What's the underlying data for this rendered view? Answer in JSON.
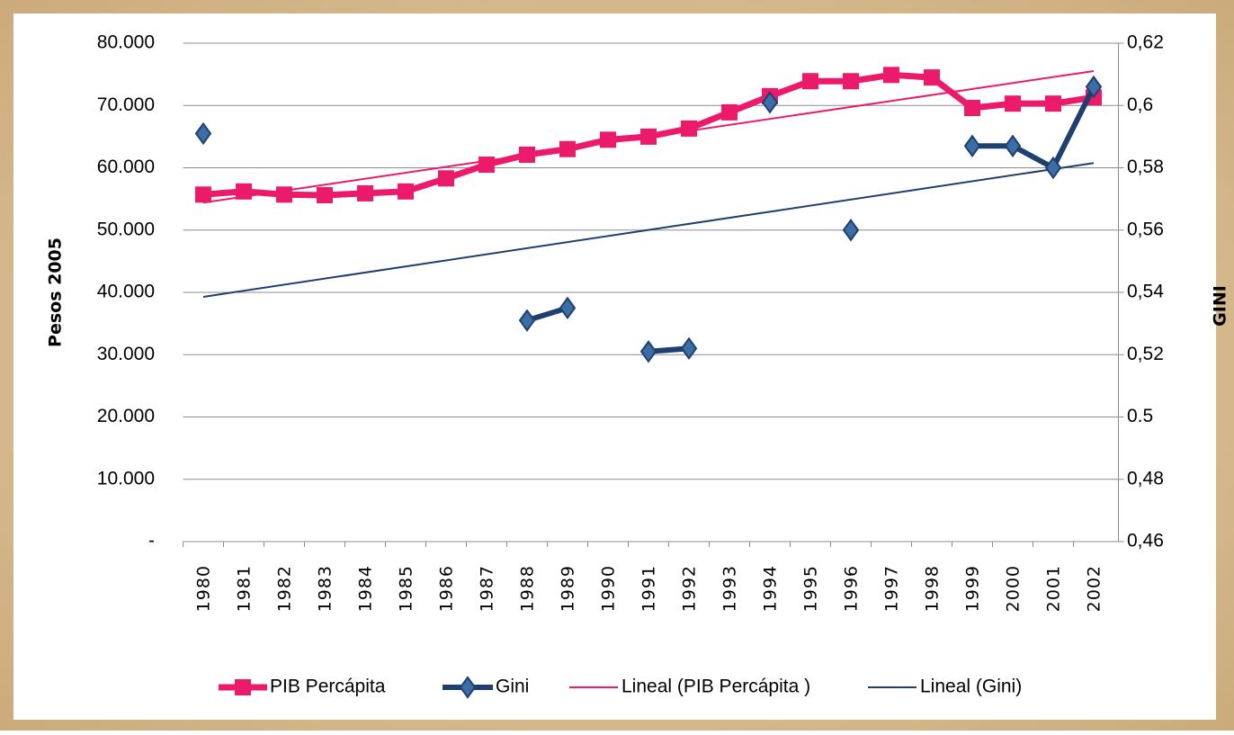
{
  "chart_data": {
    "type": "line",
    "categories": [
      "1980",
      "1981",
      "1982",
      "1983",
      "1984",
      "1985",
      "1986",
      "1987",
      "1988",
      "1989",
      "1990",
      "1991",
      "1992",
      "1993",
      "1994",
      "1995",
      "1996",
      "1997",
      "1998",
      "1999",
      "2000",
      "2001",
      "2002"
    ],
    "series": [
      {
        "name": "PIB Percápita",
        "color": "#ec1a6a",
        "marker": "square",
        "axis": "y",
        "values": [
          55700,
          56200,
          55700,
          55600,
          55900,
          56200,
          58300,
          60500,
          62100,
          63000,
          64500,
          65000,
          66300,
          68900,
          71500,
          73900,
          73900,
          74900,
          74500,
          69600,
          70300,
          70300,
          71300
        ],
        "trendline": {
          "name": "Lineal (PIB Percápita )",
          "color": "#ec1a6a"
        }
      },
      {
        "name": "Gini",
        "color": "#1f3f6e",
        "marker": "diamond",
        "axis": "y2",
        "values": [
          0.591,
          null,
          null,
          null,
          null,
          null,
          null,
          null,
          0.531,
          0.535,
          null,
          0.521,
          0.522,
          null,
          0.601,
          null,
          0.56,
          null,
          null,
          0.587,
          0.587,
          0.58,
          0.606
        ],
        "trendline": {
          "name": "Lineal (Gini)",
          "color": "#1f3f6e"
        }
      }
    ],
    "ylabel": "Pesos 2005",
    "y2label": "GINI",
    "ylim": [
      0,
      80000
    ],
    "yticks": [
      {
        "value": 0,
        "label": "-"
      },
      {
        "value": 10000,
        "label": "10.000"
      },
      {
        "value": 20000,
        "label": "20.000"
      },
      {
        "value": 30000,
        "label": "30.000"
      },
      {
        "value": 40000,
        "label": "40.000"
      },
      {
        "value": 50000,
        "label": "50.000"
      },
      {
        "value": 60000,
        "label": "60.000"
      },
      {
        "value": 70000,
        "label": "70.000"
      },
      {
        "value": 80000,
        "label": "80.000"
      }
    ],
    "y2lim": [
      0.46,
      0.62
    ],
    "y2ticks": [
      {
        "value": 0.46,
        "label": "0,46"
      },
      {
        "value": 0.48,
        "label": "0,48"
      },
      0.5,
      {
        "value": 0.5,
        "label": "0,5"
      },
      {
        "value": 0.52,
        "label": "0,52"
      },
      {
        "value": 0.54,
        "label": "0,54"
      },
      {
        "value": 0.56,
        "label": "0,56"
      },
      {
        "value": 0.58,
        "label": "0,58"
      },
      {
        "value": 0.6,
        "label": "0,6"
      },
      {
        "value": 0.62,
        "label": "0,62"
      }
    ],
    "grid": true,
    "legend": "bottom"
  }
}
